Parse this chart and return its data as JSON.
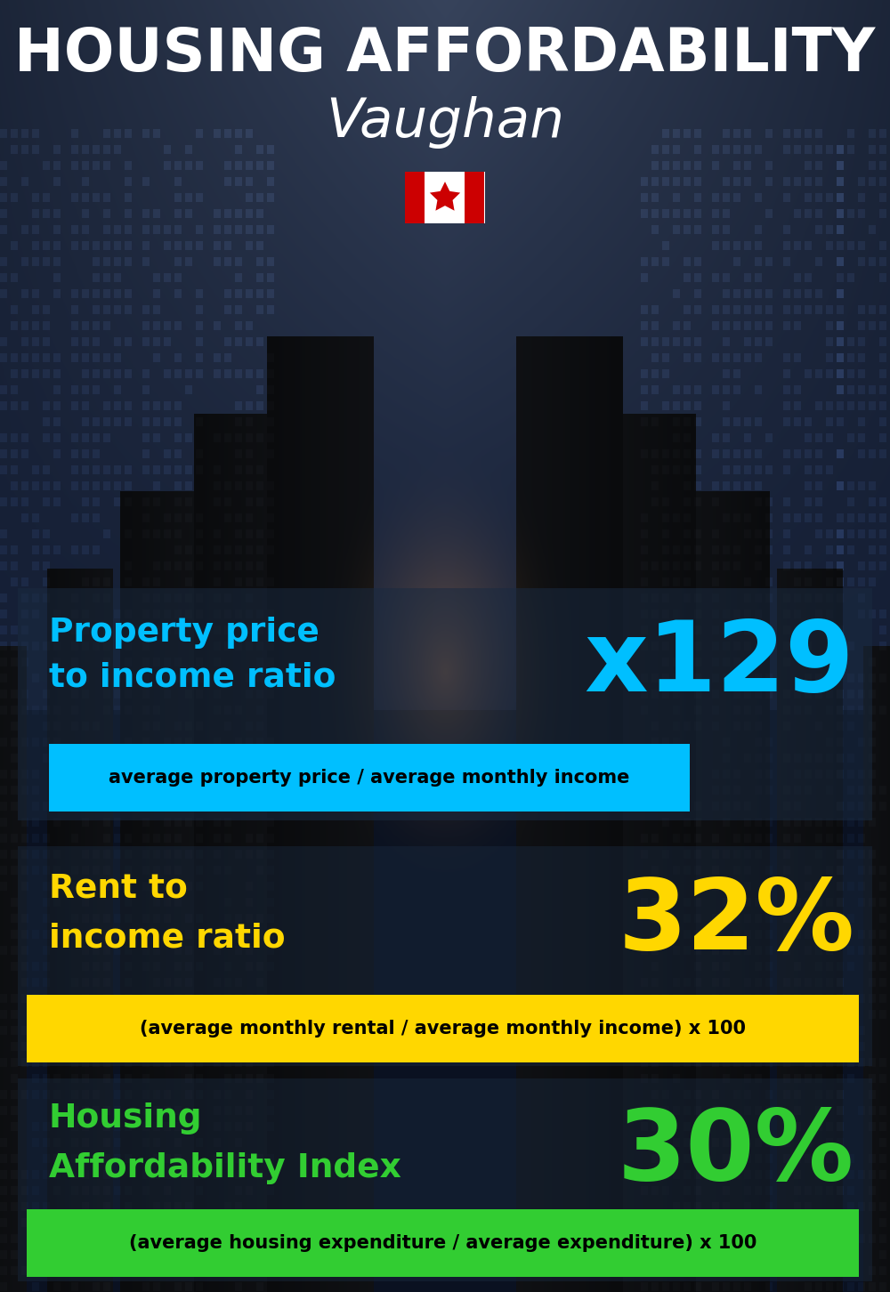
{
  "title_line1": "HOUSING AFFORDABILITY",
  "title_line2": "Vaughan",
  "section1_label": "Property price\nto income ratio",
  "section1_value": "x129",
  "section1_label_color": "#00bfff",
  "section1_value_color": "#00bfff",
  "section1_formula": "average property price / average monthly income",
  "section1_formula_bg": "#00bfff",
  "section2_label": "Rent to\nincome ratio",
  "section2_value": "32%",
  "section2_label_color": "#FFD700",
  "section2_value_color": "#FFD700",
  "section2_formula": "(average monthly rental / average monthly income) x 100",
  "section2_formula_bg": "#FFD700",
  "section3_label": "Housing\nAffordability Index",
  "section3_value": "30%",
  "section3_label_color": "#32CD32",
  "section3_value_color": "#32CD32",
  "section3_formula": "(average housing expenditure / average expenditure) x 100",
  "section3_formula_bg": "#32CD32",
  "bg_color": "#0a1220",
  "title_color": "#ffffff",
  "formula_text_color": "#000000",
  "flag_white": "#ffffff",
  "flag_red": "#cc0001"
}
